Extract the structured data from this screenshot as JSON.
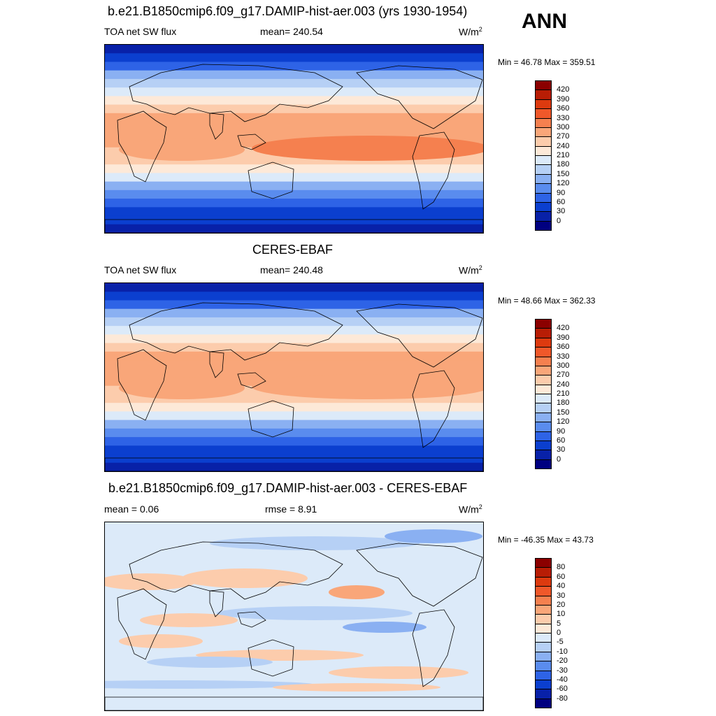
{
  "season": "ANN",
  "panels": [
    {
      "title": "b.e21.B1850cmip6.f09_g17.DAMIP-hist-aer.003 (yrs 1930-1954)",
      "left_label": "TOA net SW flux",
      "center_label": "mean= 240.54",
      "units": "W/m",
      "units_sup": "2",
      "minmax": "Min =  46.78 Max = 359.51",
      "kind": "abs"
    },
    {
      "title": "CERES-EBAF",
      "left_label": "TOA net SW flux",
      "center_label": "mean= 240.48",
      "units": "W/m",
      "units_sup": "2",
      "minmax": "Min =  48.66 Max = 362.33",
      "kind": "abs"
    },
    {
      "title": "b.e21.B1850cmip6.f09_g17.DAMIP-hist-aer.003 - CERES-EBAF",
      "left_label": "mean =   0.06",
      "center_label": "rmse =   8.91",
      "units": "W/m",
      "units_sup": "2",
      "minmax": "Min = -46.35 Max =  43.73",
      "kind": "diff"
    }
  ],
  "colorbars": {
    "abs": {
      "labels": [
        "420",
        "390",
        "360",
        "330",
        "300",
        "270",
        "240",
        "210",
        "180",
        "150",
        "120",
        "90",
        "60",
        "30",
        "0"
      ],
      "colors": [
        "#8b0000",
        "#b81d05",
        "#dd3a0f",
        "#f0582a",
        "#f5804f",
        "#f9a679",
        "#fcccac",
        "#fde9d8",
        "#dceaf9",
        "#b6d0f5",
        "#8ab0f2",
        "#5a8cee",
        "#2e63e6",
        "#0b3fcf",
        "#0821a8",
        "#000080"
      ]
    },
    "diff": {
      "labels": [
        "80",
        "60",
        "40",
        "30",
        "20",
        "10",
        "5",
        "0",
        "-5",
        "-10",
        "-20",
        "-30",
        "-40",
        "-60",
        "-80"
      ],
      "colors": [
        "#8b0000",
        "#b81d05",
        "#dd3a0f",
        "#f0582a",
        "#f5804f",
        "#f9a679",
        "#fcccac",
        "#fde9d8",
        "#dceaf9",
        "#b6d0f5",
        "#8ab0f2",
        "#5a8cee",
        "#2e63e6",
        "#0b3fcf",
        "#0821a8",
        "#000080"
      ]
    }
  }
}
